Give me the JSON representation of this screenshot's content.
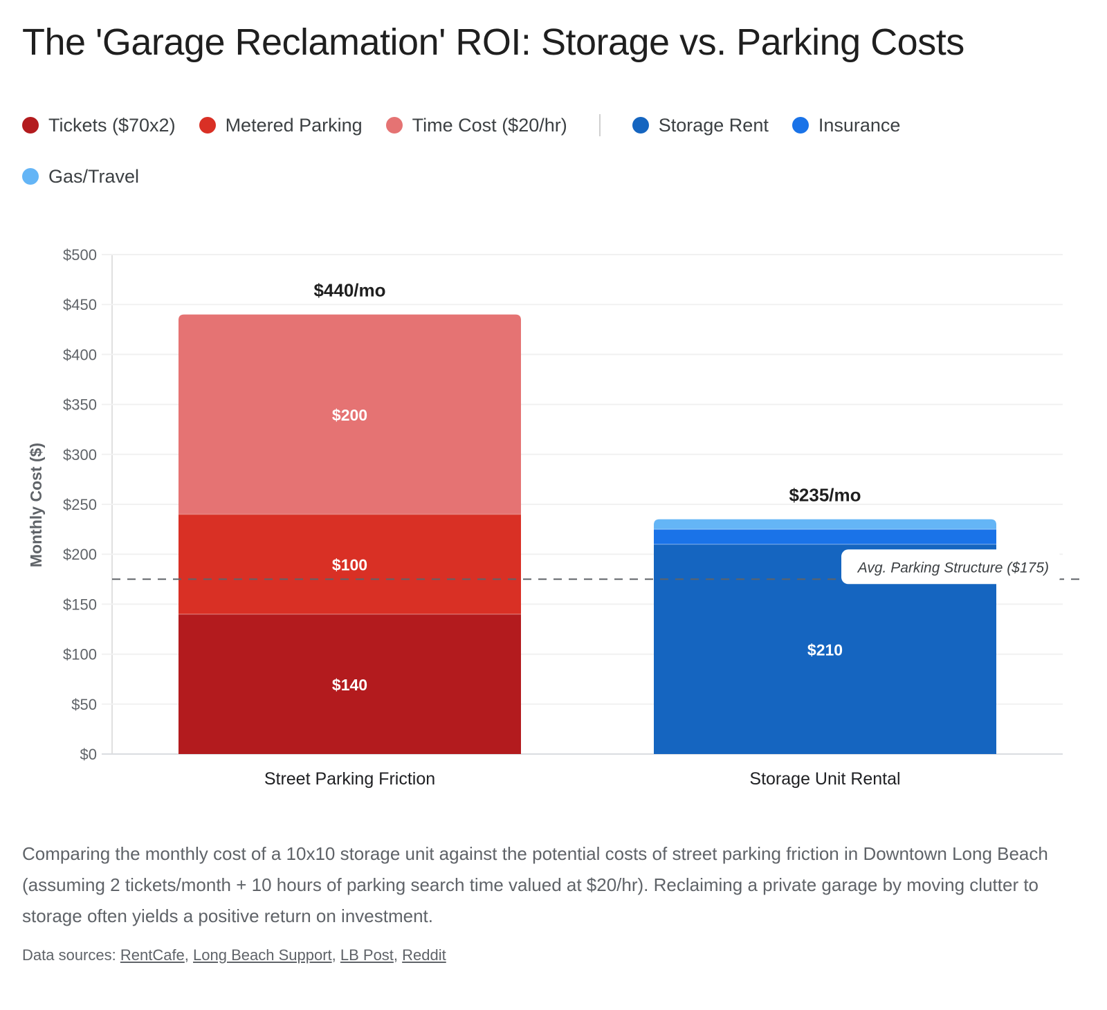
{
  "title": "The 'Garage Reclamation' ROI: Storage vs. Parking Costs",
  "legend": {
    "group1": [
      {
        "label": "Tickets ($70x2)",
        "color": "#b31b1e"
      },
      {
        "label": "Metered Parking",
        "color": "#d93025"
      },
      {
        "label": "Time Cost ($20/hr)",
        "color": "#e57373"
      }
    ],
    "group2": [
      {
        "label": "Storage Rent",
        "color": "#1565c0"
      },
      {
        "label": "Insurance",
        "color": "#1a73e8"
      },
      {
        "label": "Gas/Travel",
        "color": "#64b5f6"
      }
    ]
  },
  "chart_data": {
    "type": "bar",
    "stacked": true,
    "title": "The 'Garage Reclamation' ROI: Storage vs. Parking Costs",
    "xlabel": "",
    "ylabel": "Monthly Cost ($)",
    "ylim": [
      0,
      500
    ],
    "yticks": [
      0,
      50,
      100,
      150,
      200,
      250,
      300,
      350,
      400,
      450,
      500
    ],
    "ytick_labels": [
      "$0",
      "$50",
      "$100",
      "$150",
      "$200",
      "$250",
      "$300",
      "$350",
      "$400",
      "$450",
      "$500"
    ],
    "grid": true,
    "legend_position": "top-left",
    "categories": [
      "Street Parking Friction",
      "Storage Unit Rental"
    ],
    "bars": [
      {
        "category": "Street Parking Friction",
        "total_label": "$440/mo",
        "segments": [
          {
            "name": "Tickets ($70x2)",
            "value": 140,
            "label": "$140",
            "color": "#b31b1e"
          },
          {
            "name": "Metered Parking",
            "value": 100,
            "label": "$100",
            "color": "#d93025"
          },
          {
            "name": "Time Cost ($20/hr)",
            "value": 200,
            "label": "$200",
            "color": "#e57373"
          }
        ]
      },
      {
        "category": "Storage Unit Rental",
        "total_label": "$235/mo",
        "segments": [
          {
            "name": "Storage Rent",
            "value": 210,
            "label": "$210",
            "color": "#1565c0"
          },
          {
            "name": "Insurance",
            "value": 15,
            "label": "",
            "color": "#1a73e8"
          },
          {
            "name": "Gas/Travel",
            "value": 10,
            "label": "",
            "color": "#64b5f6"
          }
        ]
      }
    ],
    "reference_line": {
      "value": 175,
      "label": "Avg. Parking Structure ($175)",
      "style": "dashed",
      "color": "#5f6368"
    }
  },
  "caption": "Comparing the monthly cost of a 10x10 storage unit against the potential costs of street parking friction in Downtown Long Beach (assuming 2 tickets/month + 10 hours of parking search time valued at $20/hr). Reclaiming a private garage by moving clutter to storage often yields a positive return on investment.",
  "sources": {
    "prefix": "Data sources: ",
    "links": [
      "RentCafe",
      "Long Beach Support",
      "LB Post",
      "Reddit"
    ]
  }
}
